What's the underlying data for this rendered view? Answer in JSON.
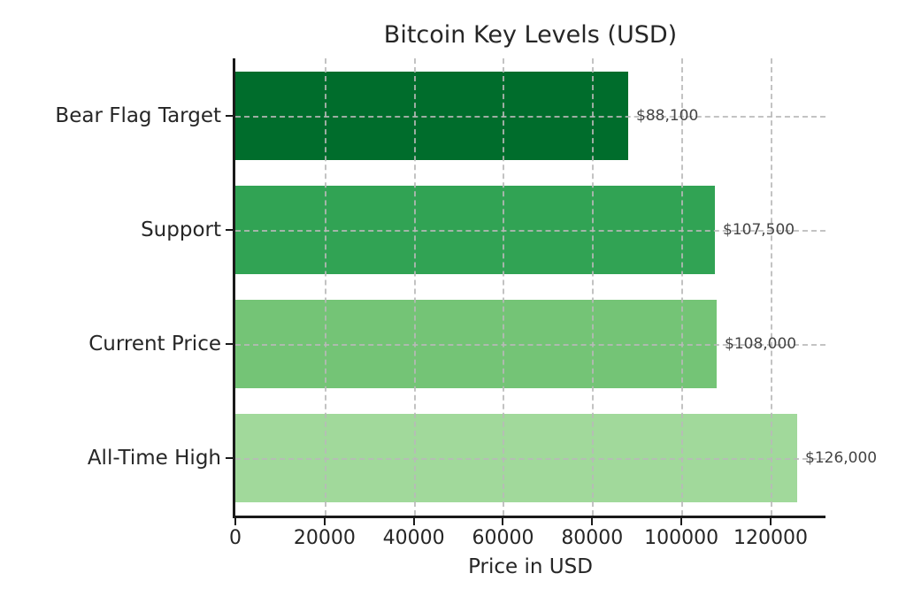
{
  "chart_data": {
    "type": "bar",
    "orientation": "horizontal",
    "title": "Bitcoin Key Levels (USD)",
    "xlabel": "Price in USD",
    "ylabel": "",
    "categories": [
      "Bear Flag Target",
      "Support",
      "Current Price",
      "All-Time High"
    ],
    "values": [
      88100,
      107500,
      108000,
      126000
    ],
    "value_labels": [
      "$88,100",
      "$107,500",
      "$108,000",
      "$126,000"
    ],
    "bar_colors": [
      "#006d2c",
      "#31a354",
      "#74c476",
      "#a1d99b"
    ],
    "xlim": [
      0,
      132300
    ],
    "xticks": [
      0,
      20000,
      40000,
      60000,
      80000,
      100000,
      120000
    ],
    "xtick_labels": [
      "0",
      "20000",
      "40000",
      "60000",
      "80000",
      "100000",
      "120000"
    ],
    "grid": true,
    "grid_style": "dashed",
    "legend": false,
    "colors": {
      "grid": "#b9b9b9",
      "spine": "#1a1a1a",
      "text": "#262626",
      "value_label": "#444444",
      "background": "#ffffff"
    }
  }
}
